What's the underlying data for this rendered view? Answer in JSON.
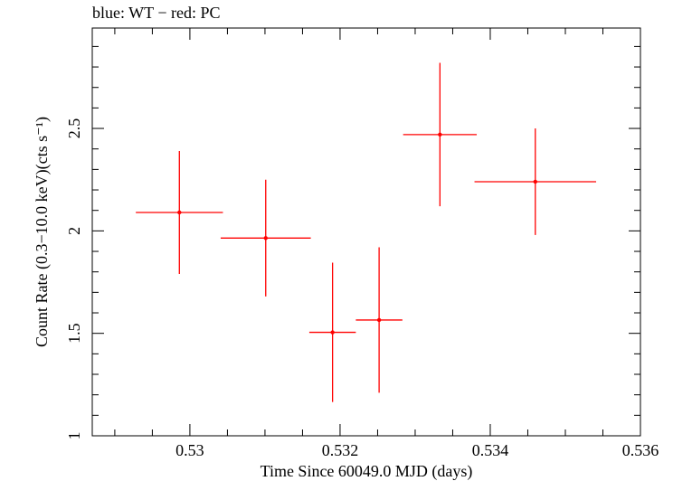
{
  "chart_data": {
    "type": "scatter",
    "title": "blue: WT − red: PC",
    "xlabel": "Time Since 60049.0 MJD (days)",
    "ylabel": "Count Rate (0.3−10.0 keV)(cts s⁻¹)",
    "xlim": [
      0.5287,
      0.536
    ],
    "ylim": [
      1.0,
      2.99
    ],
    "xticks": [
      0.53,
      0.532,
      0.534,
      0.536
    ],
    "xtick_labels": [
      "0.53",
      "0.532",
      "0.534",
      "0.536"
    ],
    "yticks": [
      1,
      1.5,
      2,
      2.5
    ],
    "ytick_labels": [
      "1",
      "1.5",
      "2",
      "2.5"
    ],
    "grid": false,
    "series": [
      {
        "color": "#ff0000",
        "points": [
          {
            "x": 0.52986,
            "xerr": 0.00058,
            "y": 2.09,
            "yerr": 0.3
          },
          {
            "x": 0.53101,
            "xerr": 0.0006,
            "y": 1.965,
            "yerr": 0.285
          },
          {
            "x": 0.5319,
            "xerr": 0.00031,
            "y": 1.505,
            "yerr": 0.34
          },
          {
            "x": 0.53252,
            "xerr": 0.00031,
            "y": 1.565,
            "yerr": 0.355
          },
          {
            "x": 0.53333,
            "xerr": 0.00049,
            "y": 2.47,
            "yerr": 0.35
          },
          {
            "x": 0.5346,
            "xerr": 0.00081,
            "y": 2.24,
            "yerr": 0.26
          }
        ]
      }
    ]
  }
}
